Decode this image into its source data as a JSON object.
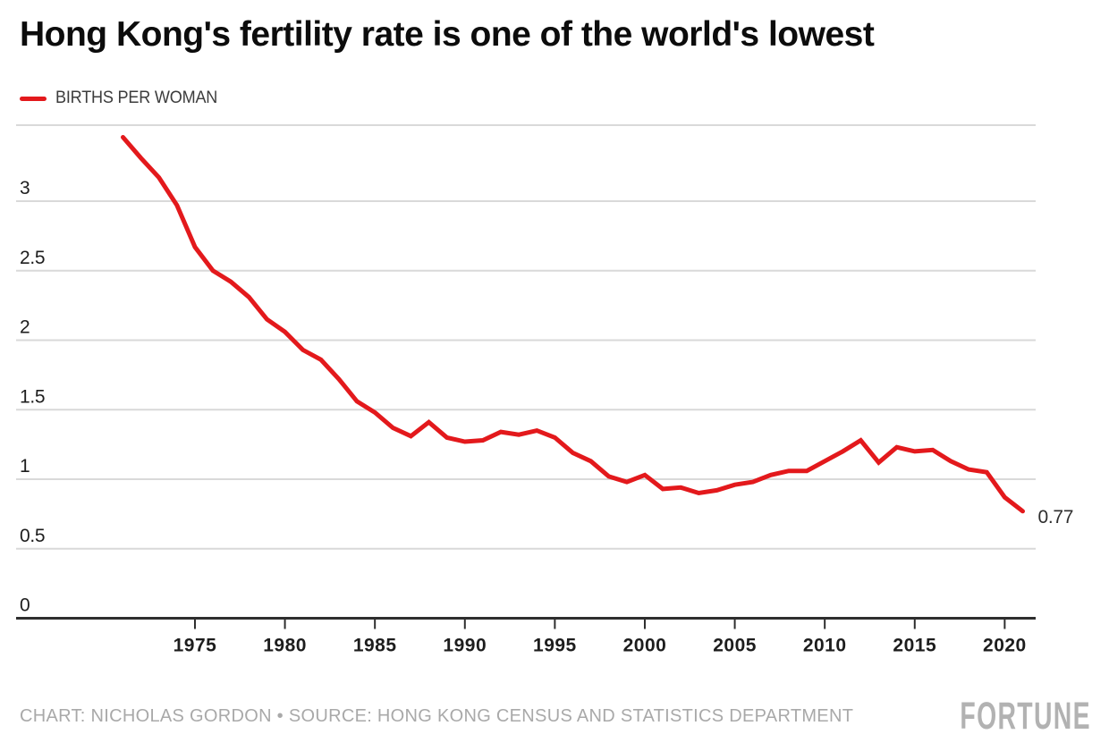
{
  "header": {
    "title": "Hong Kong's fertility rate is one of the world's lowest"
  },
  "legend": {
    "label": "BIRTHS PER WOMAN"
  },
  "footer": {
    "credit": "CHART: NICHOLAS GORDON • SOURCE: HONG KONG CENSUS AND STATISTICS DEPARTMENT",
    "logo": "FORTUNE"
  },
  "colors": {
    "line": "#e3191c",
    "grid": "#d9d9d9",
    "axis": "#2e2e2e",
    "title": "#0c0c0c",
    "tick_label": "#1d1d1d",
    "footer_gray": "#a9a9a9",
    "logo_gray": "#b2b2b2",
    "background": "#ffffff"
  },
  "chart_data": {
    "type": "line",
    "title": "Hong Kong's fertility rate is one of the world's lowest",
    "xlabel": "",
    "ylabel": "",
    "grid": "on",
    "legend_position": "top-left",
    "xlim": [
      1971,
      2021
    ],
    "ylim": [
      0,
      3.55
    ],
    "x_ticks": [
      "1975",
      "1980",
      "1985",
      "1990",
      "1995",
      "2000",
      "2005",
      "2010",
      "2015",
      "2020"
    ],
    "y_ticks": [
      "0",
      "0.5",
      "1",
      "1.5",
      "2",
      "2.5",
      "3"
    ],
    "end_label": "0.77",
    "series": [
      {
        "name": "BIRTHS PER WOMAN",
        "x": [
          1971,
          1972,
          1973,
          1974,
          1975,
          1976,
          1977,
          1978,
          1979,
          1980,
          1981,
          1982,
          1983,
          1984,
          1985,
          1986,
          1987,
          1988,
          1989,
          1990,
          1991,
          1992,
          1993,
          1994,
          1995,
          1996,
          1997,
          1998,
          1999,
          2000,
          2001,
          2002,
          2003,
          2004,
          2005,
          2006,
          2007,
          2008,
          2009,
          2010,
          2011,
          2012,
          2013,
          2014,
          2015,
          2016,
          2017,
          2018,
          2019,
          2020,
          2021
        ],
        "values": [
          3.46,
          3.31,
          3.17,
          2.97,
          2.67,
          2.5,
          2.42,
          2.31,
          2.15,
          2.06,
          1.93,
          1.86,
          1.72,
          1.56,
          1.48,
          1.37,
          1.31,
          1.41,
          1.3,
          1.27,
          1.28,
          1.34,
          1.32,
          1.35,
          1.3,
          1.19,
          1.13,
          1.02,
          0.98,
          1.03,
          0.93,
          0.94,
          0.9,
          0.92,
          0.96,
          0.98,
          1.03,
          1.06,
          1.06,
          1.13,
          1.2,
          1.28,
          1.12,
          1.23,
          1.2,
          1.21,
          1.13,
          1.07,
          1.05,
          0.87,
          0.77
        ]
      }
    ]
  }
}
